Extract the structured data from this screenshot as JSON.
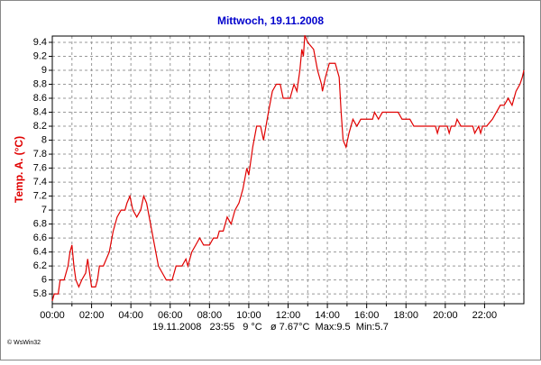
{
  "chart_data": {
    "type": "line",
    "title": "Mittwoch, 19.11.2008",
    "ylabel": "Temp. A. (°C)",
    "footer": "19.11.2008   23:55   9 °C   ø 7.67°C  Max:9.5  Min:5.7",
    "credit": "© WsWin32",
    "color": "#e00000",
    "grid": true,
    "xlim": [
      0,
      24
    ],
    "ylim": [
      5.66,
      9.49
    ],
    "xticks": [
      {
        "value": 0,
        "label": "00:00"
      },
      {
        "value": 2,
        "label": "02:00"
      },
      {
        "value": 4,
        "label": "04:00"
      },
      {
        "value": 6,
        "label": "06:00"
      },
      {
        "value": 8,
        "label": "08:00"
      },
      {
        "value": 10,
        "label": "10:00"
      },
      {
        "value": 12,
        "label": "12:00"
      },
      {
        "value": 14,
        "label": "14:00"
      },
      {
        "value": 16,
        "label": "16:00"
      },
      {
        "value": 18,
        "label": "18:00"
      },
      {
        "value": 20,
        "label": "20:00"
      },
      {
        "value": 22,
        "label": "22:00"
      }
    ],
    "x_minor_ticks": [
      1,
      3,
      5,
      7,
      9,
      11,
      13,
      15,
      17,
      19,
      21,
      23
    ],
    "yticks": [
      5.8,
      6,
      6.2,
      6.4,
      6.6,
      6.8,
      7,
      7.2,
      7.4,
      7.6,
      7.8,
      8,
      8.2,
      8.4,
      8.6,
      8.8,
      9,
      9.2,
      9.4
    ],
    "x": [
      0,
      0.1,
      0.3,
      0.4,
      0.6,
      0.8,
      0.9,
      1.0,
      1.1,
      1.2,
      1.35,
      1.5,
      1.7,
      1.8,
      1.95,
      2.0,
      2.2,
      2.3,
      2.4,
      2.6,
      2.9,
      3.1,
      3.3,
      3.5,
      3.7,
      3.8,
      3.95,
      4.1,
      4.3,
      4.5,
      4.65,
      4.8,
      5.0,
      5.2,
      5.4,
      5.6,
      5.8,
      6.1,
      6.3,
      6.6,
      6.8,
      6.9,
      7.1,
      7.3,
      7.5,
      7.7,
      8.0,
      8.2,
      8.4,
      8.5,
      8.7,
      8.9,
      9.1,
      9.3,
      9.5,
      9.7,
      9.9,
      10.0,
      10.2,
      10.4,
      10.6,
      10.75,
      11.0,
      11.2,
      11.4,
      11.6,
      11.75,
      12.1,
      12.3,
      12.45,
      12.6,
      12.7,
      12.78,
      12.85,
      13.0,
      13.3,
      13.5,
      13.7,
      13.75,
      13.9,
      14.0,
      14.1,
      14.4,
      14.6,
      14.7,
      14.8,
      14.95,
      15.1,
      15.3,
      15.5,
      15.7,
      16.3,
      16.4,
      16.6,
      16.8,
      17.6,
      17.8,
      18.2,
      18.4,
      19.5,
      19.6,
      19.7,
      20.1,
      20.2,
      20.3,
      20.5,
      20.6,
      20.8,
      21.4,
      21.5,
      21.7,
      21.8,
      21.9,
      22.1,
      22.4,
      22.6,
      22.8,
      23.0,
      23.2,
      23.4,
      23.6,
      23.8,
      23.92,
      24.0
    ],
    "values": [
      5.7,
      5.8,
      5.8,
      6.0,
      6.0,
      6.2,
      6.4,
      6.5,
      6.2,
      6.0,
      5.9,
      6.0,
      6.1,
      6.3,
      6.0,
      5.9,
      5.9,
      6.0,
      6.2,
      6.2,
      6.4,
      6.7,
      6.9,
      7.0,
      7.0,
      7.1,
      7.2,
      7.0,
      6.9,
      7.0,
      7.2,
      7.1,
      6.8,
      6.5,
      6.2,
      6.1,
      6.0,
      6.0,
      6.2,
      6.2,
      6.3,
      6.2,
      6.4,
      6.5,
      6.6,
      6.5,
      6.5,
      6.6,
      6.6,
      6.7,
      6.7,
      6.9,
      6.8,
      7.0,
      7.1,
      7.3,
      7.6,
      7.5,
      7.9,
      8.2,
      8.2,
      8.0,
      8.4,
      8.7,
      8.8,
      8.8,
      8.6,
      8.6,
      8.8,
      8.7,
      9.0,
      9.3,
      9.2,
      9.5,
      9.4,
      9.3,
      9.0,
      8.8,
      8.7,
      8.9,
      9.0,
      9.1,
      9.1,
      8.9,
      8.4,
      8.0,
      7.9,
      8.1,
      8.3,
      8.2,
      8.3,
      8.3,
      8.4,
      8.3,
      8.4,
      8.4,
      8.3,
      8.3,
      8.2,
      8.2,
      8.1,
      8.2,
      8.2,
      8.1,
      8.2,
      8.2,
      8.3,
      8.2,
      8.2,
      8.1,
      8.2,
      8.1,
      8.2,
      8.2,
      8.3,
      8.4,
      8.5,
      8.5,
      8.6,
      8.5,
      8.7,
      8.8,
      8.9,
      9.0
    ]
  }
}
